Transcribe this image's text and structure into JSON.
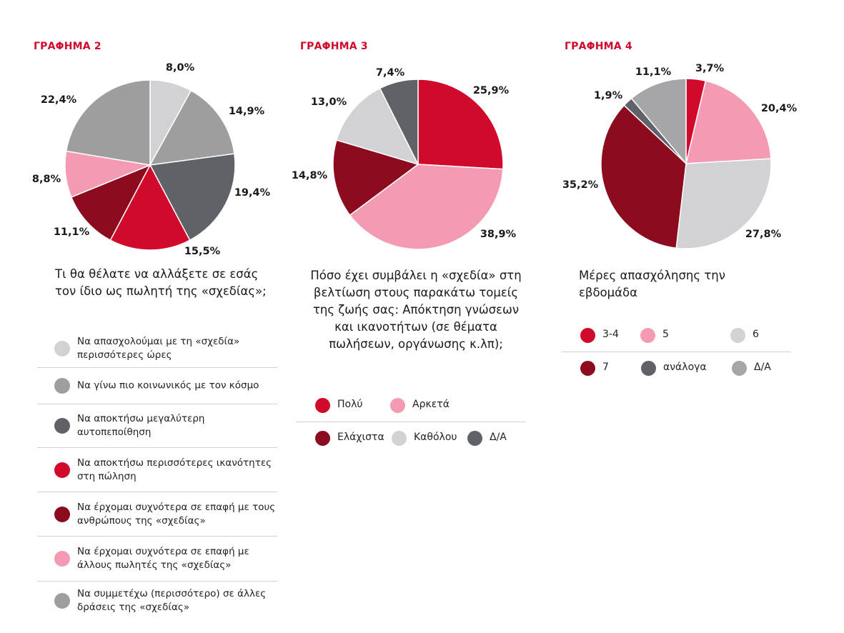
{
  "colors": {
    "red": "#d10a2b",
    "darkred": "#8c0b1f",
    "pink": "#f59ab3",
    "lightgray": "#d2d2d6",
    "midgray": "#9e9e9e",
    "darkgray": "#5f6368",
    "medgray": "#a6a6a8"
  },
  "chart_data": [
    {
      "type": "pie",
      "title": "ΓΡΑΦΗΜΑ 2",
      "question": "Τι θα θέλατε να αλλάξετε σε εσάς τον ίδιο ως πωλητή της «σχεδίας»;",
      "slices": [
        {
          "label": "8,0%",
          "value": 8.0,
          "color": "#d2d2d6"
        },
        {
          "label": "14,9%",
          "value": 14.9,
          "color": "#9e9e9e"
        },
        {
          "label": "19,4%",
          "value": 19.4,
          "color": "#5f6368"
        },
        {
          "label": "15,5%",
          "value": 15.5,
          "color": "#d10a2b"
        },
        {
          "label": "11,1%",
          "value": 11.1,
          "color": "#8c0b1f"
        },
        {
          "label": "8,8%",
          "value": 8.8,
          "color": "#f59ab3"
        },
        {
          "label": "22,4%",
          "value": 22.4,
          "color": "#9e9e9e"
        }
      ],
      "legend": [
        {
          "text": "Να απασχολούμαι με τη «σχεδία» περισσότερες ώρες",
          "color": "#d2d2d6"
        },
        {
          "text": "Να γίνω πιο κοινωνικός με τον κόσμο",
          "color": "#9e9e9e"
        },
        {
          "text": "Να αποκτήσω μεγαλύτερη αυτοπεποίθηση",
          "color": "#5f6368"
        },
        {
          "text": "Να αποκτήσω περισσότερες ικανότητες στη πώληση",
          "color": "#d10a2b"
        },
        {
          "text": "Να έρχομαι συχνότερα σε επαφή με τους ανθρώπους της «σχεδίας»",
          "color": "#8c0b1f"
        },
        {
          "text": "Να έρχομαι συχνότερα σε επαφή με άλλους πωλητές της «σχεδίας»",
          "color": "#f59ab3"
        },
        {
          "text": "Να συμμετέχω (περισσότερο) σε άλλες δράσεις της «σχεδίας»",
          "color": "#9e9e9e"
        }
      ]
    },
    {
      "type": "pie",
      "title": "ΓΡΑΦΗΜΑ 3",
      "question": "Πόσο έχει συμβάλει η «σχεδία» στη βελτίωση στους παρακάτω τομείς της ζωής σας: Απόκτηση γνώσεων και ικανοτήτων (σε θέματα πωλήσεων, οργάνωσης κ.λπ);",
      "slices": [
        {
          "label": "25,9%",
          "value": 25.9,
          "color": "#d10a2b"
        },
        {
          "label": "38,9%",
          "value": 38.9,
          "color": "#f59ab3"
        },
        {
          "label": "14,8%",
          "value": 14.8,
          "color": "#8c0b1f"
        },
        {
          "label": "13,0%",
          "value": 13.0,
          "color": "#d2d2d6"
        },
        {
          "label": "7,4%",
          "value": 7.4,
          "color": "#5f6368"
        }
      ],
      "legend": [
        {
          "text": "Πολύ",
          "color": "#d10a2b"
        },
        {
          "text": "Αρκετά",
          "color": "#f59ab3"
        },
        {
          "text": "Ελάχιστα",
          "color": "#8c0b1f"
        },
        {
          "text": "Καθόλου",
          "color": "#d2d2d6"
        },
        {
          "text": "Δ/Α",
          "color": "#5f6368"
        }
      ]
    },
    {
      "type": "pie",
      "title": "ΓΡΑΦΗΜΑ 4",
      "question": "Μέρες απασχόλησης την εβδομάδα",
      "slices": [
        {
          "label": "3,7%",
          "value": 3.7,
          "color": "#d10a2b"
        },
        {
          "label": "20,4%",
          "value": 20.4,
          "color": "#f59ab3"
        },
        {
          "label": "27,8%",
          "value": 27.8,
          "color": "#d2d2d6"
        },
        {
          "label": "35,2%",
          "value": 35.2,
          "color": "#8c0b1f"
        },
        {
          "label": "1,9%",
          "value": 1.9,
          "color": "#5f6368"
        },
        {
          "label": "11,1%",
          "value": 11.1,
          "color": "#a6a6a8"
        }
      ],
      "legend": [
        {
          "text": "3-4",
          "color": "#d10a2b"
        },
        {
          "text": "5",
          "color": "#f59ab3"
        },
        {
          "text": "6",
          "color": "#d2d2d6"
        },
        {
          "text": "7",
          "color": "#8c0b1f"
        },
        {
          "text": "ανάλογα",
          "color": "#5f6368"
        },
        {
          "text": "Δ/Α",
          "color": "#a6a6a8"
        }
      ]
    }
  ]
}
